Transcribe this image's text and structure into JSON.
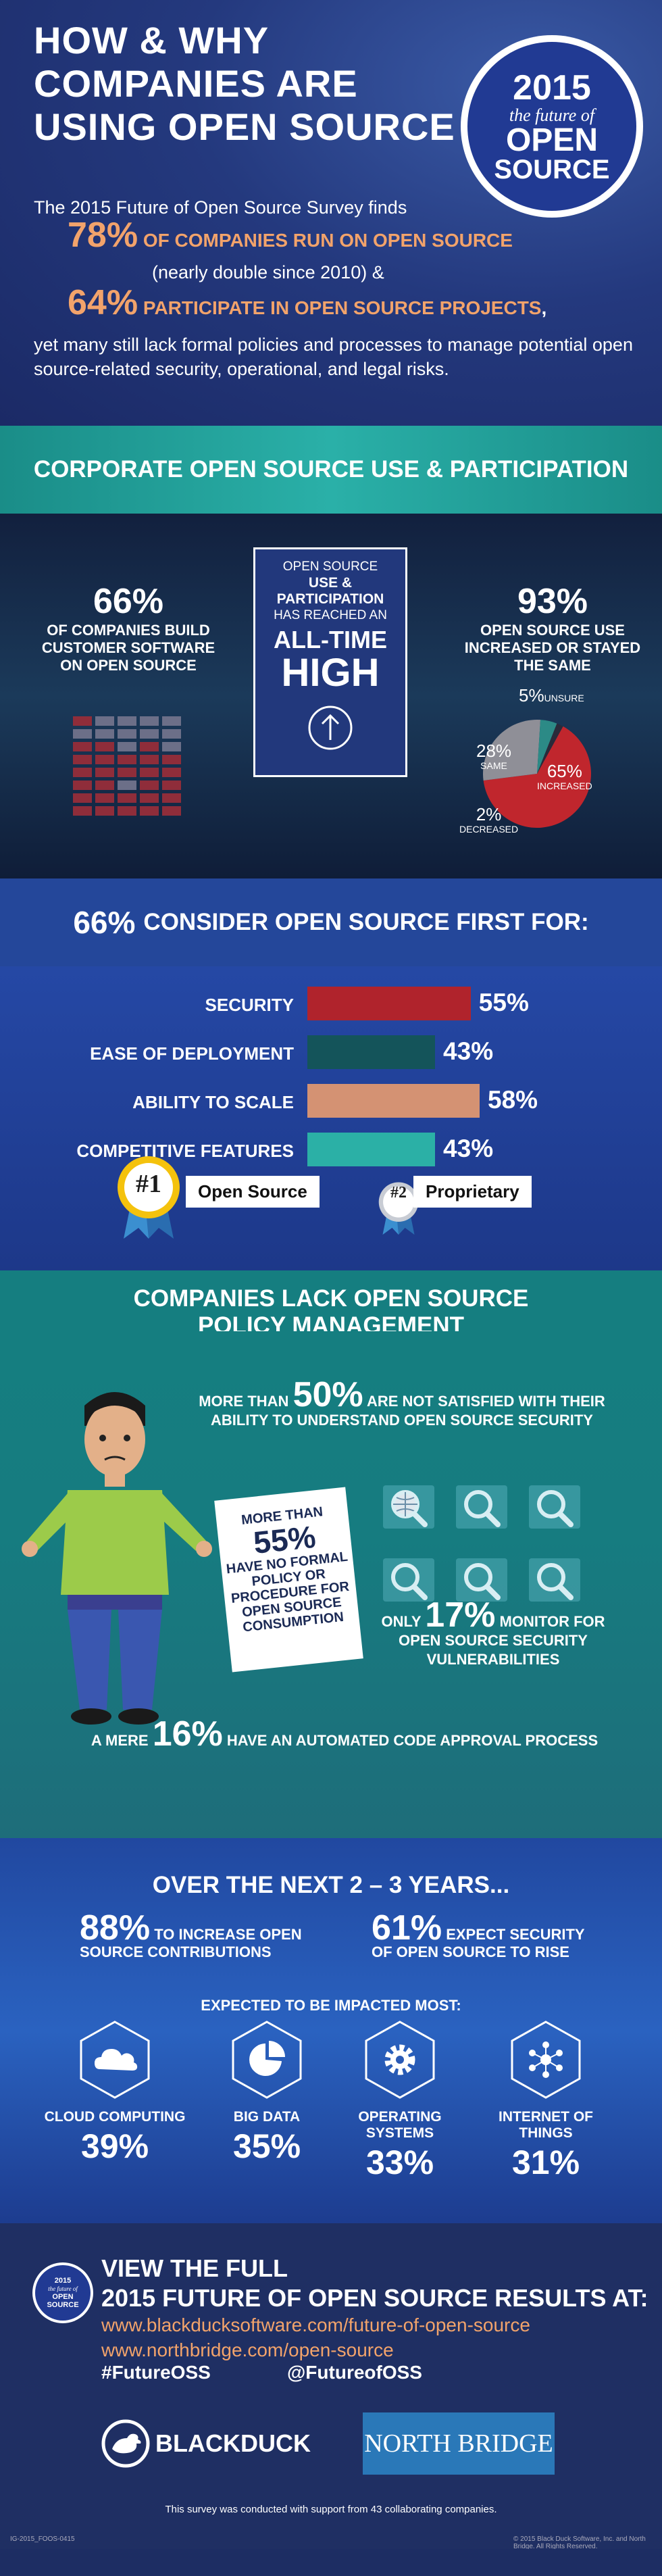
{
  "header": {
    "title_lines": [
      "HOW & WHY",
      "COMPANIES ARE",
      "USING OPEN SOURCE"
    ],
    "badge": {
      "year": "2015",
      "sub": "the future of",
      "line1": "OPEN",
      "line2": "SOURCE"
    },
    "intro": "The 2015 Future of Open Source Survey finds",
    "stat1_pct": "78%",
    "stat1_text": "of companies run on open source",
    "stat1_sub": "(nearly double since 2010) &",
    "stat2_pct": "64%",
    "stat2_text": "participate in open source projects",
    "stat2_comma": ",",
    "tail": "yet many still lack formal policies and processes to manage potential open source-related security, operational, and legal risks."
  },
  "corporate": {
    "heading": "CORPORATE OPEN SOURCE USE & PARTICIPATION",
    "left_pct": "66%",
    "left_desc": "of companies build customer software on open source",
    "center": {
      "t1": "Open source",
      "t2": "use & participation",
      "t3": "has reached an",
      "t4": "ALL-TIME",
      "t5": "HIGH"
    },
    "right_pct": "93%",
    "right_desc": "open source use increased or stayed the same",
    "pie": [
      {
        "label": "INCREASED",
        "value": 65,
        "display": "65%",
        "color": "#c0262d"
      },
      {
        "label": "SAME",
        "value": 28,
        "display": "28%",
        "color": "#8f8f97"
      },
      {
        "label": "UNSURE",
        "value": 5,
        "display": "5%",
        "color": "#2c8a86"
      },
      {
        "label": "DECREASED",
        "value": 2,
        "display": "2%",
        "color": "#2a2a3a"
      }
    ]
  },
  "first_for": {
    "heading_pct": "66%",
    "heading_text": "CONSIDER OPEN SOURCE FIRST FOR:",
    "rows": [
      {
        "label": "SECURITY",
        "value": 55,
        "display": "55%",
        "color": "#b0232c"
      },
      {
        "label": "EASE OF DEPLOYMENT",
        "value": 43,
        "display": "43%",
        "color": "#14545a"
      },
      {
        "label": "ABILITY TO SCALE",
        "value": 58,
        "display": "58%",
        "color": "#d49273"
      },
      {
        "label": "COMPETITIVE FEATURES",
        "value": 43,
        "display": "43%",
        "color": "#2bb0a6"
      }
    ],
    "rank1": {
      "number": "#1",
      "label": "Open Source"
    },
    "rank2": {
      "number": "#2",
      "label": "Proprietary"
    }
  },
  "policy": {
    "heading_line1": "COMPANIES LACK OPEN SOURCE",
    "heading_line2": "POLICY MANAGEMENT",
    "s1_pre": "More than",
    "s1_pct": "50%",
    "s1_text": "are not satisfied with their ability to understand open source security",
    "card_pre": "More than",
    "card_pct": "55%",
    "card_text": "have no formal policy or procedure for open source consumption",
    "s2_pre": "only",
    "s2_pct": "17%",
    "s2_text": "monitor for open source security vulnerabilities",
    "s3_pre": "A mere",
    "s3_pct": "16%",
    "s3_text": "have an automated code approval process",
    "icons": [
      "globe-search-icon",
      "search-icon",
      "search-icon",
      "search-icon",
      "search-icon",
      "search-icon"
    ]
  },
  "next_years": {
    "heading": "OVER THE NEXT 2 – 3 YEARS...",
    "p1_pct": "88%",
    "p1_text_1": "to increase open",
    "p1_text_2": "source contributions",
    "p2_pct": "61%",
    "p2_text_1": "expect security",
    "p2_text_2": "of open source to rise",
    "impacted": "EXPECTED TO BE IMPACTED MOST:",
    "items": [
      {
        "name": "CLOUD COMPUTING",
        "value": "39%",
        "icon": "cloud-icon"
      },
      {
        "name": "BIG DATA",
        "value": "35%",
        "icon": "pie-chart-icon"
      },
      {
        "name": "OPERATING SYSTEMS",
        "value": "33%",
        "icon": "gear-icon"
      },
      {
        "name": "INTERNET OF THINGS",
        "value": "31%",
        "icon": "network-icon"
      }
    ]
  },
  "footer": {
    "seal": {
      "year": "2015",
      "sub": "the future of",
      "line1": "OPEN",
      "line2": "SOURCE"
    },
    "view1": "VIEW THE FULL",
    "view2": "2015 FUTURE OF OPEN SOURCE RESULTS AT:",
    "link1": "www.blackducksoftware.com/future-of-open-source",
    "link2": "www.northbridge.com/open-source",
    "tag1": "#FutureOSS",
    "tag2": "@FutureofOSS",
    "brand1": "BLACKDUCK",
    "brand2": "NORTH BRIDGE",
    "note": "This survey was conducted with support from 43 collaborating companies.",
    "code": "IG-2015_FOOS-0415",
    "copyright": "© 2015 Black Duck Software, Inc. and North Bridge. All Rights Reserved."
  }
}
